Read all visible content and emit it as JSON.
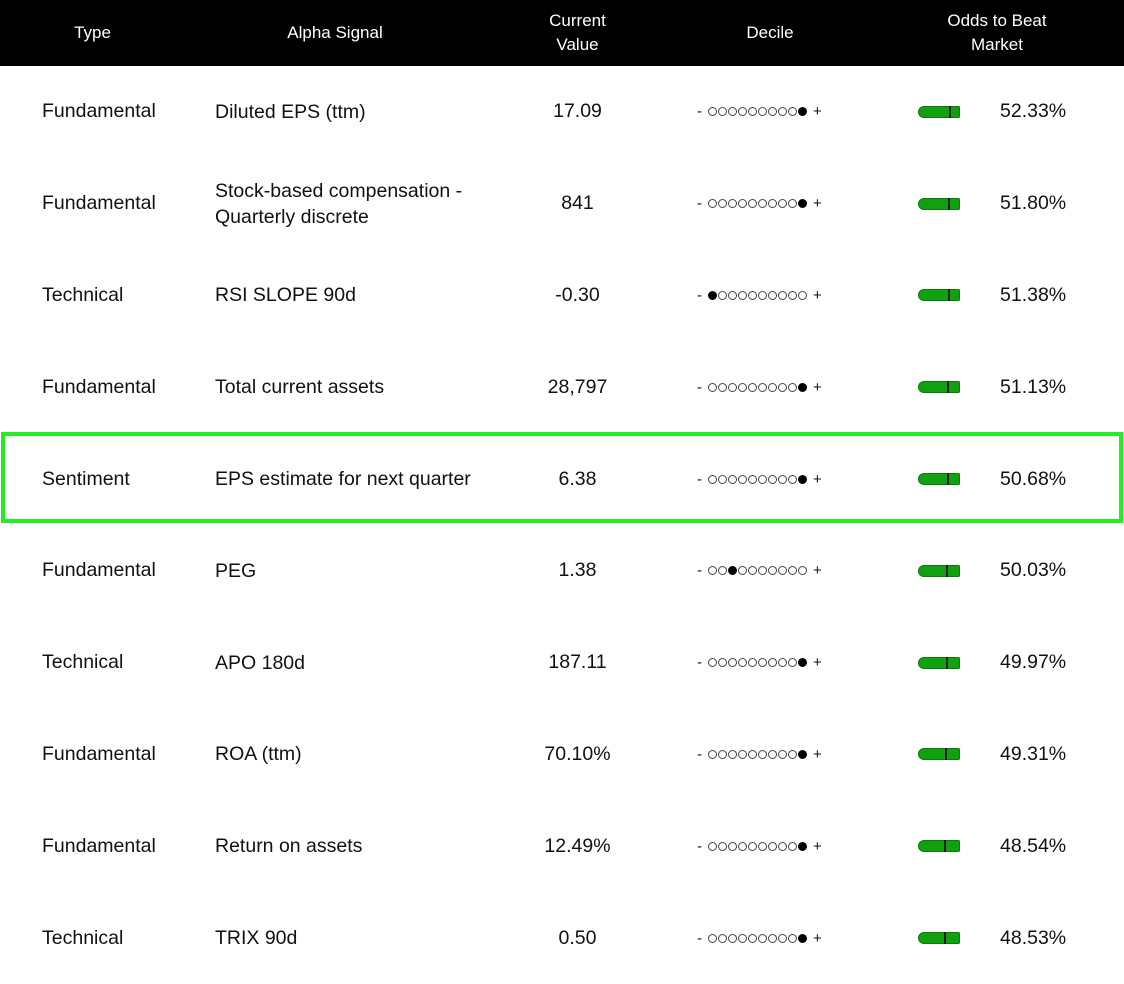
{
  "header": {
    "type": "Type",
    "signal": "Alpha Signal",
    "value_line1": "Current",
    "value_line2": "Value",
    "decile": "Decile",
    "odds_line1": "Odds to Beat",
    "odds_line2": "Market"
  },
  "decile_minus": "-",
  "decile_plus": "+",
  "highlight_color": "#22ee22",
  "bar_color": "#10a010",
  "rows": [
    {
      "type": "Fundamental",
      "signal": "Diluted EPS (ttm)",
      "value": "17.09",
      "decile": 10,
      "odds": "52.33%",
      "odds_pct": 52.33
    },
    {
      "type": "Fundamental",
      "signal": "Stock-based compensation - Quarterly discrete",
      "value": "841",
      "decile": 10,
      "odds": "51.80%",
      "odds_pct": 51.8
    },
    {
      "type": "Technical",
      "signal": "RSI SLOPE 90d",
      "value": "-0.30",
      "decile": 1,
      "odds": "51.38%",
      "odds_pct": 51.38
    },
    {
      "type": "Fundamental",
      "signal": "Total current assets",
      "value": "28,797",
      "decile": 10,
      "odds": "51.13%",
      "odds_pct": 51.13
    },
    {
      "type": "Sentiment",
      "signal": "EPS estimate for next quarter",
      "value": "6.38",
      "decile": 10,
      "odds": "50.68%",
      "odds_pct": 50.68,
      "highlighted": true
    },
    {
      "type": "Fundamental",
      "signal": "PEG",
      "value": "1.38",
      "decile": 3,
      "odds": "50.03%",
      "odds_pct": 50.03
    },
    {
      "type": "Technical",
      "signal": "APO 180d",
      "value": "187.11",
      "decile": 10,
      "odds": "49.97%",
      "odds_pct": 49.97
    },
    {
      "type": "Fundamental",
      "signal": "ROA (ttm)",
      "value": "70.10%",
      "decile": 10,
      "odds": "49.31%",
      "odds_pct": 49.31
    },
    {
      "type": "Fundamental",
      "signal": "Return on assets",
      "value": "12.49%",
      "decile": 10,
      "odds": "48.54%",
      "odds_pct": 48.54
    },
    {
      "type": "Technical",
      "signal": "TRIX 90d",
      "value": "0.50",
      "decile": 10,
      "odds": "48.53%",
      "odds_pct": 48.53
    }
  ]
}
